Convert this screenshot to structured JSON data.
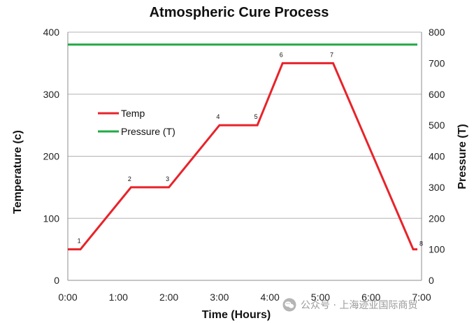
{
  "chart_data": {
    "type": "line",
    "title": "Atmospheric Cure Process",
    "xlabel": "Time (Hours)",
    "ylabel": "Temperature (c)",
    "y2label": "Pressure (T)",
    "xlim": [
      0,
      420
    ],
    "ylim": [
      0,
      400
    ],
    "y2lim": [
      0,
      800
    ],
    "x_tick_values": [
      0,
      60,
      120,
      180,
      240,
      300,
      360,
      420
    ],
    "x_tick_labels": [
      "0:00",
      "1:00",
      "2:00",
      "3:00",
      "4:00",
      "5:00",
      "6:00",
      "7:00"
    ],
    "y_tick_labels": [
      "0",
      "100",
      "200",
      "300",
      "400"
    ],
    "y2_tick_labels": [
      "0",
      "100",
      "200",
      "300",
      "400",
      "500",
      "600",
      "700",
      "800"
    ],
    "grid": true,
    "legend_position": "upper-left",
    "series": [
      {
        "name": "Temp",
        "color": "#e8232a",
        "axis": "left",
        "x": [
          0,
          15,
          75,
          120,
          180,
          225,
          255,
          315,
          410,
          415
        ],
        "y": [
          50,
          50,
          150,
          150,
          250,
          250,
          350,
          350,
          50,
          50
        ]
      },
      {
        "name": "Pressure (T)",
        "color": "#22aa44",
        "axis": "right",
        "x": [
          0,
          415
        ],
        "y": [
          760,
          760
        ]
      }
    ],
    "annotations": [
      {
        "text": "1",
        "x": 15,
        "y": 50
      },
      {
        "text": "2",
        "x": 75,
        "y": 150
      },
      {
        "text": "3",
        "x": 120,
        "y": 150
      },
      {
        "text": "4",
        "x": 180,
        "y": 250
      },
      {
        "text": "5",
        "x": 225,
        "y": 250
      },
      {
        "text": "6",
        "x": 255,
        "y": 350
      },
      {
        "text": "7",
        "x": 315,
        "y": 350
      },
      {
        "text": "8",
        "x": 415,
        "y": 50
      }
    ]
  },
  "watermark": {
    "text": "公众号 · 上海迹亚国际商贸",
    "icon": "wechat-icon"
  }
}
